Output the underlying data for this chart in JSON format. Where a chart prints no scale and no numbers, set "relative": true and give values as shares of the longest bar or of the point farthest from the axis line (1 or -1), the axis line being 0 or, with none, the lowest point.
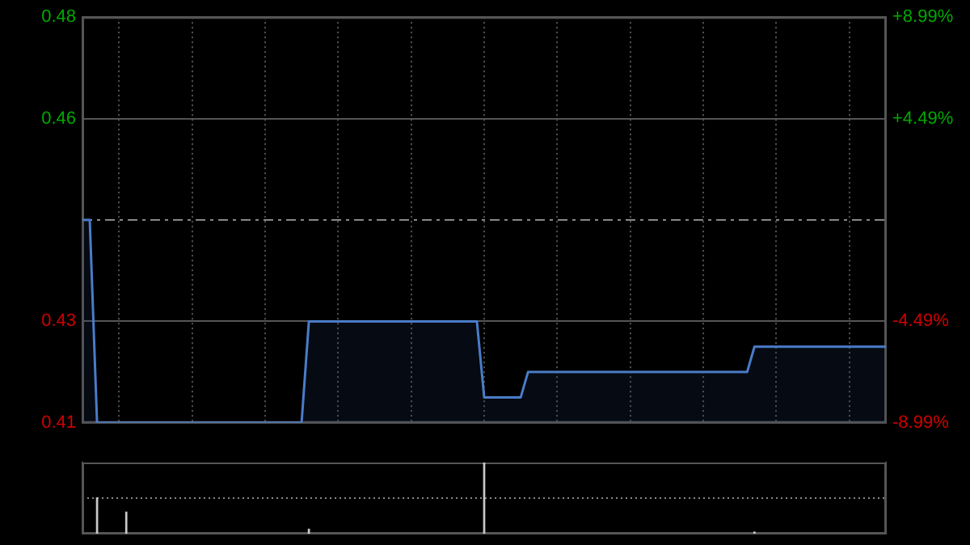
{
  "chart_data": [
    {
      "type": "area",
      "categories": [
        null,
        null,
        null,
        null,
        null,
        null,
        null,
        null,
        null,
        null,
        null,
        null,
        null,
        null,
        null,
        null,
        null,
        null,
        null,
        null,
        null,
        null,
        null,
        null,
        null,
        null,
        null,
        null,
        null,
        null,
        null,
        null,
        null,
        null,
        null,
        null,
        null,
        null,
        null,
        null,
        null,
        null,
        null,
        null,
        null,
        null,
        null,
        null,
        null,
        null,
        null,
        null,
        null,
        null,
        null,
        null,
        null,
        null,
        null,
        null,
        null,
        null,
        null,
        null,
        null,
        null,
        null,
        null,
        null,
        null,
        null,
        null,
        null,
        null,
        null,
        null,
        null,
        null,
        null,
        null,
        null,
        null,
        null,
        null,
        null,
        null,
        null,
        null,
        null,
        null,
        null,
        null,
        null,
        null,
        null,
        null,
        null,
        null,
        null,
        null,
        null,
        null,
        null,
        null,
        null,
        null,
        null,
        null,
        null,
        null,
        null
      ],
      "series": [
        {
          "color": "#4a7cc8",
          "values": [
            0.445,
            0.445,
            0.405,
            0.405,
            0.405,
            0.405,
            0.405,
            0.405,
            0.405,
            0.405,
            0.405,
            0.405,
            0.405,
            0.405,
            0.405,
            0.405,
            0.405,
            0.405,
            0.405,
            0.405,
            0.405,
            0.405,
            0.405,
            0.405,
            0.405,
            0.405,
            0.405,
            0.405,
            0.405,
            0.405,
            0.405,
            0.425,
            0.425,
            0.425,
            0.425,
            0.425,
            0.425,
            0.425,
            0.425,
            0.425,
            0.425,
            0.425,
            0.425,
            0.425,
            0.425,
            0.425,
            0.425,
            0.425,
            0.425,
            0.425,
            0.425,
            0.425,
            0.425,
            0.425,
            0.425,
            0.41,
            0.41,
            0.41,
            0.41,
            0.41,
            0.41,
            0.415,
            0.415,
            0.415,
            0.415,
            0.415,
            0.415,
            0.415,
            0.415,
            0.415,
            0.415,
            0.415,
            0.415,
            0.415,
            0.415,
            0.415,
            0.415,
            0.415,
            0.415,
            0.415,
            0.415,
            0.415,
            0.415,
            0.415,
            0.415,
            0.415,
            0.415,
            0.415,
            0.415,
            0.415,
            0.415,
            0.415,
            0.42,
            0.42,
            0.42,
            0.42,
            0.42,
            0.42,
            0.42,
            0.42,
            0.42,
            0.42,
            0.42,
            0.42,
            0.42,
            0.42,
            0.42,
            0.42,
            0.42,
            0.42,
            0.42
          ]
        }
      ],
      "ylim": [
        0.405,
        0.485
      ],
      "yticks": [
        {
          "value": 0.405,
          "label": "0.41"
        },
        {
          "value": 0.425,
          "label": "0.43"
        },
        {
          "value": 0.465,
          "label": "0.46"
        },
        {
          "value": 0.485,
          "label": "0.48"
        }
      ],
      "y2lim": [
        -8.99,
        8.99
      ],
      "y2ticks": [
        {
          "value": -8.99,
          "label": "-8.99%"
        },
        {
          "value": -4.49,
          "label": "-4.49%"
        },
        {
          "value": 4.49,
          "label": "+4.49%"
        },
        {
          "value": 8.99,
          "label": "+8.99%"
        }
      ],
      "ref_lines": [
        {
          "axis": "y",
          "value": 0.445,
          "line_style": "dashed"
        }
      ],
      "grid": true,
      "legend": false,
      "marker": "none"
    },
    {
      "type": "bar",
      "relative": true,
      "categories": [
        null,
        null,
        null,
        null,
        null,
        null,
        null,
        null,
        null,
        null,
        null,
        null,
        null,
        null,
        null,
        null,
        null,
        null,
        null,
        null,
        null,
        null,
        null,
        null,
        null,
        null,
        null,
        null,
        null,
        null,
        null,
        null,
        null,
        null,
        null,
        null,
        null,
        null,
        null,
        null,
        null,
        null,
        null,
        null,
        null,
        null,
        null,
        null,
        null,
        null,
        null,
        null,
        null,
        null,
        null,
        null,
        null,
        null,
        null,
        null,
        null,
        null,
        null,
        null,
        null,
        null,
        null,
        null,
        null,
        null,
        null,
        null,
        null,
        null,
        null,
        null,
        null,
        null,
        null,
        null,
        null,
        null,
        null,
        null,
        null,
        null,
        null,
        null,
        null,
        null,
        null,
        null,
        null,
        null,
        null,
        null,
        null,
        null,
        null,
        null,
        null,
        null,
        null,
        null,
        null,
        null,
        null,
        null,
        null,
        null,
        null
      ],
      "values": [
        null,
        null,
        0.51,
        null,
        null,
        null,
        0.31,
        null,
        null,
        null,
        null,
        null,
        null,
        null,
        null,
        null,
        null,
        null,
        null,
        null,
        null,
        null,
        null,
        null,
        null,
        null,
        null,
        null,
        null,
        null,
        null,
        0.07,
        null,
        null,
        null,
        null,
        null,
        null,
        null,
        null,
        null,
        null,
        null,
        null,
        null,
        null,
        null,
        null,
        null,
        null,
        null,
        null,
        null,
        null,
        null,
        1,
        null,
        null,
        null,
        null,
        null,
        null,
        null,
        null,
        null,
        null,
        null,
        null,
        null,
        null,
        null,
        null,
        null,
        null,
        null,
        null,
        null,
        null,
        null,
        null,
        null,
        null,
        null,
        null,
        null,
        null,
        null,
        null,
        null,
        null,
        null,
        null,
        0.03,
        null,
        null,
        null,
        null,
        null,
        null,
        null,
        null,
        null,
        null,
        null,
        null,
        null,
        null,
        null,
        null,
        null,
        null
      ],
      "color": "#c8c8c8",
      "ref_lines": [
        {
          "axis": "y",
          "value": 0.5,
          "line_style": "dotted"
        }
      ],
      "legend": false
    }
  ]
}
